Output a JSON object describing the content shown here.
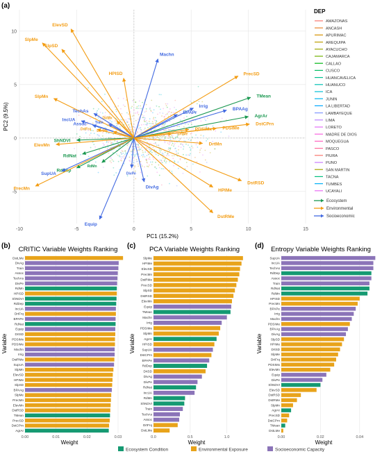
{
  "colors": {
    "ecosystem": "#1a9850",
    "environmental": "#f39c12",
    "socioeconomic": "#4169e1",
    "purple": "#8b74b8",
    "green": "#159a72",
    "orange": "#e8a31a"
  },
  "panel_a": {
    "label": "(a)",
    "legend_title": "DEP",
    "departments": [
      {
        "name": "AMAZONAS",
        "color": "#f8766d"
      },
      {
        "name": "ANCASH",
        "color": "#e9842c"
      },
      {
        "name": "APURIMAC",
        "color": "#d69100"
      },
      {
        "name": "AREQUIPA",
        "color": "#bc9d00"
      },
      {
        "name": "AYACUCHO",
        "color": "#9ca700"
      },
      {
        "name": "CAJAMARCA",
        "color": "#6fb000"
      },
      {
        "name": "CALLAO",
        "color": "#00b813"
      },
      {
        "name": "CUSCO",
        "color": "#00bd61"
      },
      {
        "name": "HUANCAVELICA",
        "color": "#00c08e"
      },
      {
        "name": "HUANUCO",
        "color": "#00c0b4"
      },
      {
        "name": "ICA",
        "color": "#00bdd4"
      },
      {
        "name": "JUNIN",
        "color": "#00b5ee"
      },
      {
        "name": "LA LIBERTAD",
        "color": "#00a7ff"
      },
      {
        "name": "LAMBAYEQUE",
        "color": "#7f96ff"
      },
      {
        "name": "LIMA",
        "color": "#bc81ff"
      },
      {
        "name": "LORETO",
        "color": "#e26ef7"
      },
      {
        "name": "MADRE DE DIOS",
        "color": "#f863df"
      },
      {
        "name": "MOQUEGUA",
        "color": "#ff62bf"
      },
      {
        "name": "PASCO",
        "color": "#ff6a9a"
      },
      {
        "name": "PIURA",
        "color": "#f8766d"
      },
      {
        "name": "PUNO",
        "color": "#c77cff"
      },
      {
        "name": "SAN MARTIN",
        "color": "#a3a500"
      },
      {
        "name": "TACNA",
        "color": "#00bf7d"
      },
      {
        "name": "TUMBES",
        "color": "#00b0f6"
      },
      {
        "name": "UCAYALI",
        "color": "#e76bf3"
      }
    ],
    "arrow_legend": [
      {
        "name": "Ecosystem",
        "key": "ecosystem"
      },
      {
        "name": "Environmental",
        "key": "environmental"
      },
      {
        "name": "Socioeconomic",
        "key": "socioeconomic"
      }
    ]
  },
  "panel_b": {
    "label": "(b)",
    "title": "CRITIC Variable Weights Ranking",
    "xlabel": "Weight",
    "ylabel": "Variable"
  },
  "panel_c": {
    "label": "(c)",
    "title": "PCA Variable Weights Ranking",
    "xlabel": "Weight",
    "ylabel": "Variable"
  },
  "panel_d": {
    "label": "(d)",
    "title": "Entropy Variable Weights Ranking",
    "xlabel": "Weight",
    "ylabel": "Variable"
  },
  "bottom_legend": [
    {
      "name": "Ecosystem Condition",
      "key": "green"
    },
    {
      "name": "Environmental Exposure",
      "key": "orange"
    },
    {
      "name": "Socioeconomic Capacity",
      "key": "purple"
    }
  ],
  "chart_data": [
    {
      "type": "scatter",
      "id": "biplot",
      "xlabel": "PC1 (15.2%)",
      "ylabel": "PC2 (9.5%)",
      "xlim": [
        -10,
        15
      ],
      "ylim": [
        -8,
        12
      ],
      "xticks": [
        -10,
        -5,
        0,
        5,
        10,
        15
      ],
      "yticks": [
        -5,
        0,
        5,
        10
      ],
      "grid": true,
      "arrows": [
        {
          "label": "ElevSD",
          "x": -5.5,
          "y": 10.2,
          "group": "environmental"
        },
        {
          "label": "SlpMe",
          "x": -8.0,
          "y": 8.9,
          "group": "environmental"
        },
        {
          "label": "SlpSD",
          "x": -6.3,
          "y": 8.3,
          "group": "environmental"
        },
        {
          "label": "HPISD",
          "x": -0.9,
          "y": 5.6,
          "group": "environmental"
        },
        {
          "label": "Machn",
          "x": 2.1,
          "y": 7.4,
          "group": "socioeconomic"
        },
        {
          "label": "PrecSD",
          "x": 9.1,
          "y": 5.8,
          "group": "environmental"
        },
        {
          "label": "SlpMn",
          "x": -7.0,
          "y": 3.7,
          "group": "environmental"
        },
        {
          "label": "TMean",
          "x": 10.2,
          "y": 3.8,
          "group": "ecosystem"
        },
        {
          "label": "Irrig",
          "x": 5.2,
          "y": 2.8,
          "group": "socioeconomic"
        },
        {
          "label": "BPAAg",
          "x": 8.1,
          "y": 2.6,
          "group": "socioeconomic"
        },
        {
          "label": "BPAPr",
          "x": 3.8,
          "y": 2.2,
          "group": "socioeconomic"
        },
        {
          "label": "AgrAr",
          "x": 10.0,
          "y": 2.0,
          "group": "ecosystem"
        },
        {
          "label": "DstCPrn",
          "x": 10.1,
          "y": 1.3,
          "group": "environmental"
        },
        {
          "label": "PDSIMe",
          "x": 7.2,
          "y": 0.9,
          "group": "environmental"
        },
        {
          "label": "PDSIMx",
          "x": 4.8,
          "y": 0.8,
          "group": "environmental"
        },
        {
          "label": "TechAs",
          "x": -3.5,
          "y": 2.3,
          "group": "socioeconomic"
        },
        {
          "label": "IncUA",
          "x": -4.6,
          "y": 1.6,
          "group": "socioeconomic"
        },
        {
          "label": "Assoc",
          "x": -3.6,
          "y": 1.2,
          "group": "socioeconomic"
        },
        {
          "label": "Train",
          "x": -2.2,
          "y": 1.3,
          "group": "socioeconomic"
        },
        {
          "label": "DrtFrq",
          "x": -3.2,
          "y": 0.8,
          "group": "environmental"
        },
        {
          "label": "DrtMe",
          "x": 3.3,
          "y": 0.4,
          "group": "environmental"
        },
        {
          "label": "DrtMx",
          "x": -1.5,
          "y": 1.6,
          "group": "environmental"
        },
        {
          "label": "DvrMs",
          "x": -1.8,
          "y": 0.6,
          "group": "environmental"
        },
        {
          "label": "ShNDVI",
          "x": -5.0,
          "y": -0.2,
          "group": "ecosystem"
        },
        {
          "label": "ElevMn",
          "x": -6.8,
          "y": -0.6,
          "group": "environmental"
        },
        {
          "label": "DrtMn",
          "x": 6.0,
          "y": -0.5,
          "group": "environmental"
        },
        {
          "label": "RdNat",
          "x": -4.5,
          "y": -1.5,
          "group": "ecosystem"
        },
        {
          "label": "RdDep",
          "x": -5.0,
          "y": -2.8,
          "group": "ecosystem"
        },
        {
          "label": "RdMn",
          "x": -2.8,
          "y": -2.3,
          "group": "ecosystem"
        },
        {
          "label": "SupUA",
          "x": -6.3,
          "y": -3.1,
          "group": "socioeconomic"
        },
        {
          "label": "DivPe",
          "x": -0.2,
          "y": -2.8,
          "group": "socioeconomic"
        },
        {
          "label": "DivAg",
          "x": 0.9,
          "y": -4.1,
          "group": "socioeconomic"
        },
        {
          "label": "PrecMn",
          "x": -8.6,
          "y": -4.5,
          "group": "environmental"
        },
        {
          "label": "DstRSD",
          "x": 9.4,
          "y": -4.0,
          "group": "environmental"
        },
        {
          "label": "HPIMe",
          "x": 6.9,
          "y": -4.6,
          "group": "environmental"
        },
        {
          "label": "DstRMe",
          "x": 6.9,
          "y": -7.0,
          "group": "environmental"
        },
        {
          "label": "Equip",
          "x": -3.0,
          "y": -7.6,
          "group": "socioeconomic"
        }
      ]
    },
    {
      "type": "bar",
      "id": "critic",
      "xlim": [
        0,
        0.03
      ],
      "xticks": [
        0,
        0.01,
        0.02,
        0.03
      ],
      "categories": [
        "DstLMe",
        "DivAg",
        "Train",
        "Assoc",
        "TechAs",
        "DivPe",
        "RdMn",
        "HPISD",
        "ShNDVI",
        "RdDep",
        "IncUA",
        "DrtFrq",
        "BPAPe",
        "RdNat",
        "Equip",
        "DrtSD",
        "PDSIMx",
        "PDSIMe",
        "Machn",
        "Irrig",
        "DstRMe",
        "SupUA",
        "SlpMn",
        "ElevSD",
        "HPIMe",
        "SlpSD",
        "BPAAg",
        "SlpMe",
        "PrecMn",
        "ElevMn",
        "DstRSD",
        "TMean",
        "PrecSD",
        "DstCPrn",
        "AgrAr"
      ],
      "values": [
        0.0316,
        0.0302,
        0.0301,
        0.0299,
        0.0298,
        0.0297,
        0.0296,
        0.0296,
        0.0295,
        0.0294,
        0.0293,
        0.0293,
        0.0292,
        0.0292,
        0.0291,
        0.0291,
        0.029,
        0.029,
        0.0289,
        0.0289,
        0.0288,
        0.0287,
        0.0285,
        0.0283,
        0.0282,
        0.0281,
        0.028,
        0.0278,
        0.0277,
        0.0276,
        0.0275,
        0.0274,
        0.0273,
        0.0271,
        0.027
      ],
      "groups": [
        "orange",
        "purple",
        "purple",
        "purple",
        "purple",
        "purple",
        "green",
        "orange",
        "green",
        "green",
        "purple",
        "orange",
        "purple",
        "green",
        "purple",
        "orange",
        "orange",
        "orange",
        "purple",
        "purple",
        "orange",
        "purple",
        "orange",
        "orange",
        "orange",
        "orange",
        "purple",
        "orange",
        "orange",
        "orange",
        "orange",
        "green",
        "orange",
        "orange",
        "green"
      ]
    },
    {
      "type": "bar",
      "id": "pca",
      "xlim": [
        0,
        1.25
      ],
      "xticks": [
        0.0,
        0.5,
        1.0
      ],
      "categories": [
        "SlpMe",
        "HPIMe",
        "ElevSD",
        "PrecMn",
        "DstRMe",
        "PrecSD",
        "SlpSD",
        "DstRSD",
        "ElevMn",
        "Equip",
        "TMean",
        "Machn",
        "Irrig",
        "PDSIMe",
        "SlpMn",
        "AgrAr",
        "HPISD",
        "SupUA",
        "DstCPrn",
        "BPAPe",
        "RdDep",
        "DrtSD",
        "DivAg",
        "DivPe",
        "RdNat",
        "IncUA",
        "RdMn",
        "ShNDVI",
        "Train",
        "TechAs",
        "Assoc",
        "DrtFrq",
        "DstLMe"
      ],
      "values": [
        1.22,
        1.2,
        1.18,
        1.17,
        1.15,
        1.13,
        1.11,
        1.09,
        1.07,
        1.06,
        1.05,
        1.0,
        0.93,
        0.91,
        0.89,
        0.86,
        0.83,
        0.81,
        0.79,
        0.76,
        0.73,
        0.71,
        0.66,
        0.6,
        0.58,
        0.56,
        0.43,
        0.42,
        0.4,
        0.36,
        0.35,
        0.33,
        0.22
      ],
      "groups": [
        "orange",
        "orange",
        "orange",
        "orange",
        "orange",
        "orange",
        "orange",
        "orange",
        "orange",
        "purple",
        "green",
        "purple",
        "purple",
        "orange",
        "orange",
        "green",
        "orange",
        "purple",
        "orange",
        "purple",
        "green",
        "orange",
        "purple",
        "purple",
        "green",
        "purple",
        "green",
        "green",
        "purple",
        "purple",
        "purple",
        "orange",
        "orange"
      ]
    },
    {
      "type": "bar",
      "id": "entropy",
      "xlim": [
        0,
        0.05
      ],
      "xticks": [
        0.0,
        0.02,
        0.04
      ],
      "categories": [
        "SupUA",
        "IncUA",
        "TechAs",
        "RdDep",
        "Assoc",
        "Train",
        "RdNat",
        "RdMn",
        "HPISD",
        "PrecMn",
        "BPAPe",
        "Irrig",
        "Machn",
        "PDSIMe",
        "BPAAg",
        "DivAg",
        "SlpSD",
        "HPIMe",
        "DrtSD",
        "SlpMe",
        "DrtFrq",
        "PDSIMx",
        "ElevMn",
        "Equip",
        "DivPe",
        "ShNDVI",
        "ElevSD",
        "DstRSD",
        "DstRMe",
        "SlpMn",
        "AgrAr",
        "PrecSD",
        "DstCPrn",
        "TMean",
        "DstLMe"
      ],
      "values": [
        0.048,
        0.047,
        0.047,
        0.046,
        0.046,
        0.045,
        0.045,
        0.044,
        0.04,
        0.039,
        0.038,
        0.037,
        0.036,
        0.035,
        0.034,
        0.033,
        0.032,
        0.031,
        0.03,
        0.029,
        0.028,
        0.027,
        0.025,
        0.023,
        0.021,
        0.02,
        0.018,
        0.01,
        0.008,
        0.006,
        0.005,
        0.004,
        0.003,
        0.002,
        0.001
      ],
      "groups": [
        "purple",
        "purple",
        "purple",
        "green",
        "purple",
        "purple",
        "green",
        "green",
        "orange",
        "orange",
        "purple",
        "purple",
        "purple",
        "orange",
        "purple",
        "purple",
        "orange",
        "orange",
        "orange",
        "orange",
        "orange",
        "orange",
        "orange",
        "purple",
        "purple",
        "green",
        "orange",
        "orange",
        "orange",
        "orange",
        "green",
        "orange",
        "orange",
        "green",
        "orange"
      ]
    }
  ]
}
